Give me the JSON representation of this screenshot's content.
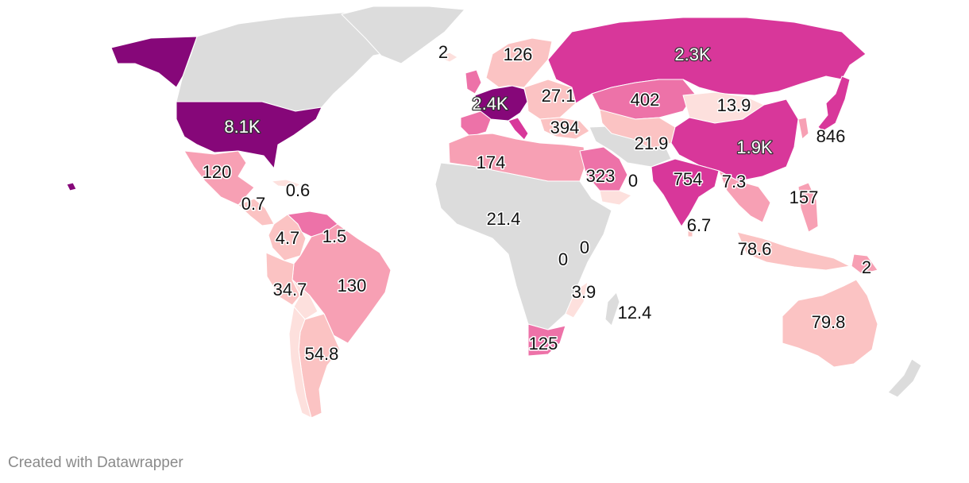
{
  "credit": "Created with Datawrapper",
  "colors": {
    "no_data": "#dcdcdc",
    "scale": [
      "#fde0dd",
      "#fbc3c3",
      "#f7a0b4",
      "#ed72a8",
      "#d8379a",
      "#a0137e",
      "#860779"
    ]
  },
  "values": [
    {
      "region": "greenland",
      "label": "2"
    },
    {
      "region": "nordics",
      "label": "126"
    },
    {
      "region": "russia",
      "label": "2.3K"
    },
    {
      "region": "eastern-europe",
      "label": "27.1"
    },
    {
      "region": "western-europe",
      "label": "2.4K"
    },
    {
      "region": "kazakhstan",
      "label": "402"
    },
    {
      "region": "mongolia",
      "label": "13.9"
    },
    {
      "region": "turkey",
      "label": "394"
    },
    {
      "region": "japan",
      "label": "846"
    },
    {
      "region": "usa",
      "label": "8.1K"
    },
    {
      "region": "central-asia",
      "label": "21.9"
    },
    {
      "region": "china",
      "label": "1.9K"
    },
    {
      "region": "north-africa",
      "label": "174"
    },
    {
      "region": "saudi-arabia",
      "label": "323"
    },
    {
      "region": "yemen",
      "label": "0"
    },
    {
      "region": "india",
      "label": "754"
    },
    {
      "region": "bangladesh",
      "label": "7.3"
    },
    {
      "region": "mexico",
      "label": "120"
    },
    {
      "region": "cuba",
      "label": "0.6"
    },
    {
      "region": "central-america",
      "label": "0.7"
    },
    {
      "region": "philippines",
      "label": "157"
    },
    {
      "region": "west-africa",
      "label": "21.4"
    },
    {
      "region": "sri-lanka",
      "label": "6.7"
    },
    {
      "region": "colombia",
      "label": "4.7"
    },
    {
      "region": "venezuela",
      "label": "1.5"
    },
    {
      "region": "somalia",
      "label": "0"
    },
    {
      "region": "central-africa",
      "label": "0"
    },
    {
      "region": "indonesia",
      "label": "78.6"
    },
    {
      "region": "png",
      "label": "2"
    },
    {
      "region": "brazil",
      "label": "130"
    },
    {
      "region": "peru",
      "label": "34.7"
    },
    {
      "region": "mozambique",
      "label": "3.9"
    },
    {
      "region": "madagascar",
      "label": "12.4"
    },
    {
      "region": "australia",
      "label": "79.8"
    },
    {
      "region": "argentina",
      "label": "54.8"
    },
    {
      "region": "south-africa",
      "label": "125"
    }
  ]
}
